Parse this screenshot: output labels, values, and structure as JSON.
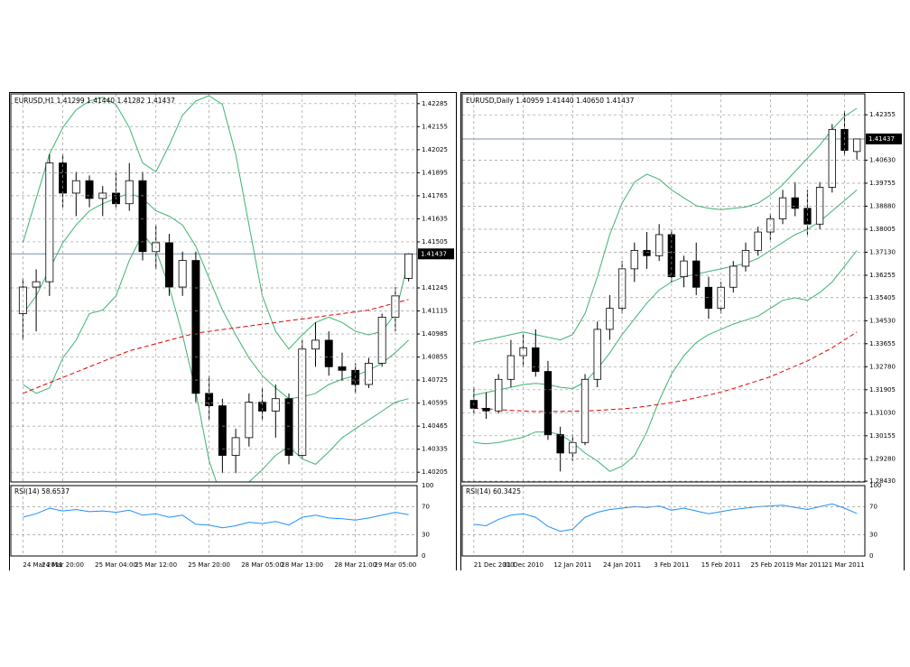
{
  "chart_data": [
    {
      "type": "candlestick",
      "title": "EURUSD,H1 1.41299 1.41440 1.41282 1.41437",
      "categories": [
        "24 Mar 2011",
        null,
        null,
        "24 Mar 20:00",
        null,
        null,
        null,
        "25 Mar 04:00",
        null,
        null,
        "25 Mar 12:00",
        null,
        null,
        null,
        "25 Mar 20:00",
        null,
        null,
        null,
        "28 Mar 05:00",
        null,
        null,
        "28 Mar 13:00",
        null,
        null,
        null,
        "28 Mar 21:00",
        null,
        null,
        "29 Mar 05:00",
        null
      ],
      "ohlc": [
        [
          1.411,
          1.413,
          1.4095,
          1.4125
        ],
        [
          1.4125,
          1.4135,
          1.41,
          1.4128
        ],
        [
          1.4128,
          1.42,
          1.412,
          1.4195
        ],
        [
          1.4195,
          1.42,
          1.417,
          1.4178
        ],
        [
          1.4178,
          1.419,
          1.4165,
          1.4185
        ],
        [
          1.4185,
          1.4188,
          1.417,
          1.4175
        ],
        [
          1.4175,
          1.4182,
          1.4165,
          1.4178
        ],
        [
          1.4178,
          1.419,
          1.417,
          1.4172
        ],
        [
          1.4172,
          1.4195,
          1.4168,
          1.4185
        ],
        [
          1.4185,
          1.419,
          1.414,
          1.4145
        ],
        [
          1.4145,
          1.416,
          1.4135,
          1.415
        ],
        [
          1.415,
          1.4155,
          1.412,
          1.4125
        ],
        [
          1.4125,
          1.4145,
          1.412,
          1.414
        ],
        [
          1.414,
          1.4145,
          1.406,
          1.4065
        ],
        [
          1.4065,
          1.4075,
          1.405,
          1.4058
        ],
        [
          1.4058,
          1.4062,
          1.402,
          1.403
        ],
        [
          1.403,
          1.4045,
          1.402,
          1.404
        ],
        [
          1.404,
          1.4065,
          1.4035,
          1.406
        ],
        [
          1.406,
          1.4068,
          1.405,
          1.4055
        ],
        [
          1.4055,
          1.407,
          1.404,
          1.4062
        ],
        [
          1.4062,
          1.4065,
          1.4025,
          1.403
        ],
        [
          1.403,
          1.4095,
          1.4028,
          1.409
        ],
        [
          1.409,
          1.4105,
          1.408,
          1.4095
        ],
        [
          1.4095,
          1.41,
          1.4075,
          1.408
        ],
        [
          1.408,
          1.4088,
          1.4072,
          1.4078
        ],
        [
          1.4078,
          1.4082,
          1.4065,
          1.407
        ],
        [
          1.407,
          1.4085,
          1.4068,
          1.4082
        ],
        [
          1.4082,
          1.411,
          1.408,
          1.4108
        ],
        [
          1.4108,
          1.4125,
          1.41,
          1.412
        ],
        [
          1.41299,
          1.4144,
          1.41282,
          1.41437
        ]
      ],
      "bands": {
        "upper": [
          1.415,
          1.4175,
          1.42,
          1.4215,
          1.4225,
          1.423,
          1.4232,
          1.4228,
          1.4215,
          1.4195,
          1.419,
          1.4205,
          1.4222,
          1.423,
          1.4233,
          1.4228,
          1.42,
          1.416,
          1.412,
          1.41,
          1.409,
          1.4098,
          1.4105,
          1.4108,
          1.4105,
          1.41,
          1.4098,
          1.41,
          1.411,
          1.414
        ],
        "middle": [
          1.411,
          1.412,
          1.4135,
          1.415,
          1.416,
          1.4168,
          1.4172,
          1.4175,
          1.4178,
          1.4175,
          1.4168,
          1.4165,
          1.416,
          1.4148,
          1.413,
          1.4112,
          1.4098,
          1.4085,
          1.4075,
          1.4068,
          1.4062,
          1.4063,
          1.4065,
          1.407,
          1.4073,
          1.4075,
          1.4078,
          1.4082,
          1.4088,
          1.4095
        ],
        "lower": [
          1.407,
          1.4065,
          1.4068,
          1.4085,
          1.4095,
          1.411,
          1.4112,
          1.412,
          1.414,
          1.4155,
          1.4146,
          1.4125,
          1.4098,
          1.4066,
          1.4027,
          1.4005,
          1.401,
          1.4015,
          1.4022,
          1.403,
          1.4035,
          1.4028,
          1.4025,
          1.4032,
          1.404,
          1.4045,
          1.405,
          1.4055,
          1.406,
          1.4062
        ]
      },
      "band_color": "#3cb371",
      "ma": [
        1.4065,
        1.4068,
        1.4071,
        1.4074,
        1.4077,
        1.408,
        1.4083,
        1.4086,
        1.4089,
        1.4091,
        1.4093,
        1.4095,
        1.4097,
        1.4099,
        1.41,
        1.4101,
        1.4102,
        1.4103,
        1.4104,
        1.4105,
        1.4106,
        1.4107,
        1.4108,
        1.4109,
        1.411,
        1.4111,
        1.4112,
        1.4114,
        1.4116,
        1.4118
      ],
      "ma_color": "#e00000",
      "last_price": 1.41437,
      "ylim": [
        1.4015,
        1.4234
      ],
      "yticks": [
        1.42285,
        1.42155,
        1.42025,
        1.41895,
        1.41765,
        1.41635,
        1.41505,
        1.41245,
        1.41115,
        1.40985,
        1.40855,
        1.40725,
        1.40595,
        1.40465,
        1.40335,
        1.40205
      ],
      "grid": true,
      "rsi": {
        "label": "RSI(14) 58.6537",
        "color": "#1e90ff",
        "ylim": [
          0,
          100
        ],
        "yticks": [
          100,
          70,
          30,
          0
        ],
        "values": [
          55,
          60,
          68,
          64,
          66,
          63,
          64,
          62,
          65,
          58,
          60,
          55,
          58,
          45,
          44,
          40,
          43,
          48,
          46,
          49,
          44,
          55,
          58,
          54,
          53,
          51,
          54,
          58,
          62,
          58.6537
        ]
      }
    },
    {
      "type": "candlestick",
      "title": "EURUSD,Daily 1.40959 1.41440 1.40650 1.41437",
      "categories": [
        "21 Dec 2010",
        null,
        null,
        null,
        "31 Dec 2010",
        null,
        null,
        null,
        "12 Jan 2011",
        null,
        null,
        null,
        "24 Jan 2011",
        null,
        null,
        null,
        "3 Feb 2011",
        null,
        null,
        null,
        "15 Feb 2011",
        null,
        null,
        null,
        "25 Feb 2011",
        null,
        null,
        "9 Mar 2011",
        null,
        null,
        "21 Mar 2011",
        null
      ],
      "ohlc": [
        [
          1.315,
          1.32,
          1.31,
          1.312
        ],
        [
          1.312,
          1.318,
          1.308,
          1.311
        ],
        [
          1.311,
          1.325,
          1.31,
          1.323
        ],
        [
          1.323,
          1.338,
          1.32,
          1.332
        ],
        [
          1.332,
          1.34,
          1.328,
          1.335
        ],
        [
          1.335,
          1.342,
          1.324,
          1.326
        ],
        [
          1.326,
          1.33,
          1.3,
          1.302
        ],
        [
          1.302,
          1.305,
          1.288,
          1.295
        ],
        [
          1.295,
          1.302,
          1.292,
          1.299
        ],
        [
          1.299,
          1.325,
          1.298,
          1.323
        ],
        [
          1.323,
          1.345,
          1.32,
          1.342
        ],
        [
          1.342,
          1.355,
          1.338,
          1.35
        ],
        [
          1.35,
          1.368,
          1.348,
          1.365
        ],
        [
          1.365,
          1.375,
          1.36,
          1.372
        ],
        [
          1.372,
          1.379,
          1.365,
          1.37
        ],
        [
          1.37,
          1.382,
          1.368,
          1.378
        ],
        [
          1.378,
          1.38,
          1.36,
          1.362
        ],
        [
          1.362,
          1.37,
          1.358,
          1.368
        ],
        [
          1.368,
          1.375,
          1.355,
          1.358
        ],
        [
          1.358,
          1.362,
          1.346,
          1.35
        ],
        [
          1.35,
          1.36,
          1.348,
          1.358
        ],
        [
          1.358,
          1.368,
          1.356,
          1.366
        ],
        [
          1.366,
          1.375,
          1.364,
          1.372
        ],
        [
          1.372,
          1.381,
          1.37,
          1.379
        ],
        [
          1.379,
          1.386,
          1.376,
          1.384
        ],
        [
          1.384,
          1.395,
          1.382,
          1.392
        ],
        [
          1.392,
          1.398,
          1.385,
          1.388
        ],
        [
          1.388,
          1.395,
          1.378,
          1.382
        ],
        [
          1.382,
          1.398,
          1.38,
          1.396
        ],
        [
          1.396,
          1.42,
          1.394,
          1.418
        ],
        [
          1.418,
          1.425,
          1.408,
          1.41
        ],
        [
          1.40959,
          1.4144,
          1.4065,
          1.41437
        ]
      ],
      "bands": {
        "upper": [
          1.337,
          1.338,
          1.339,
          1.34,
          1.341,
          1.34,
          1.339,
          1.338,
          1.34,
          1.348,
          1.362,
          1.378,
          1.39,
          1.398,
          1.401,
          1.399,
          1.395,
          1.392,
          1.389,
          1.388,
          1.3875,
          1.388,
          1.3885,
          1.39,
          1.393,
          1.397,
          1.402,
          1.407,
          1.412,
          1.418,
          1.423,
          1.426
        ],
        "middle": [
          1.317,
          1.318,
          1.319,
          1.32,
          1.321,
          1.3215,
          1.321,
          1.32,
          1.3195,
          1.322,
          1.327,
          1.333,
          1.34,
          1.346,
          1.352,
          1.357,
          1.36,
          1.362,
          1.363,
          1.364,
          1.365,
          1.366,
          1.367,
          1.369,
          1.372,
          1.375,
          1.378,
          1.38,
          1.383,
          1.387,
          1.391,
          1.395
        ],
        "lower": [
          1.299,
          1.2985,
          1.299,
          1.3,
          1.301,
          1.303,
          1.303,
          1.302,
          1.299,
          1.295,
          1.292,
          1.288,
          1.29,
          1.294,
          1.303,
          1.315,
          1.325,
          1.332,
          1.337,
          1.34,
          1.342,
          1.344,
          1.3455,
          1.347,
          1.35,
          1.353,
          1.354,
          1.353,
          1.356,
          1.36,
          1.366,
          1.372
        ]
      },
      "band_color": "#3cb371",
      "ma": [
        1.312,
        1.3118,
        1.3115,
        1.3112,
        1.311,
        1.3108,
        1.3108,
        1.3108,
        1.3109,
        1.311,
        1.3112,
        1.3115,
        1.3118,
        1.3122,
        1.3128,
        1.3135,
        1.3142,
        1.315,
        1.316,
        1.317,
        1.3182,
        1.3195,
        1.321,
        1.3225,
        1.324,
        1.326,
        1.328,
        1.33,
        1.3325,
        1.335,
        1.338,
        1.341
      ],
      "ma_color": "#e00000",
      "last_price": 1.41437,
      "ylim": [
        1.284,
        1.4315
      ],
      "yticks": [
        1.42355,
        {
          "value": 1.4063,
          "label": "1.40630"
        },
        1.39755,
        {
          "value": 1.3888,
          "label": "1.38880"
        },
        1.38005,
        {
          "value": 1.3713,
          "label": "1.37130"
        },
        1.36255,
        1.35405,
        {
          "value": 1.3453,
          "label": "1.34530"
        },
        1.33655,
        {
          "value": 1.3278,
          "label": "1.32780"
        },
        1.31905,
        {
          "value": 1.3103,
          "label": "1.31030"
        },
        1.30155,
        {
          "value": 1.2928,
          "label": "1.29280"
        },
        {
          "value": 1.2843,
          "label": "1.28430"
        }
      ],
      "grid": true,
      "rsi": {
        "label": "RSI(14) 60.3425",
        "color": "#1e90ff",
        "ylim": [
          0,
          100
        ],
        "yticks": [
          100,
          70,
          30,
          0
        ],
        "values": [
          45,
          43,
          52,
          58,
          60,
          55,
          42,
          35,
          38,
          55,
          62,
          66,
          68,
          70,
          69,
          71,
          65,
          68,
          64,
          60,
          63,
          66,
          68,
          70,
          71,
          72,
          69,
          66,
          70,
          74,
          68,
          60.3425
        ]
      }
    }
  ]
}
